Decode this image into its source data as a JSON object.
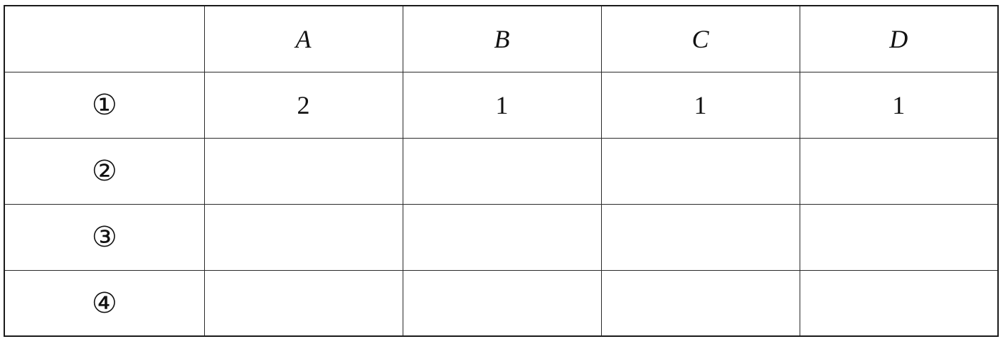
{
  "table": {
    "corner": "",
    "columns": [
      "A",
      "B",
      "C",
      "D"
    ],
    "rows": [
      {
        "label": "①",
        "cells": [
          "2",
          "1",
          "1",
          "1"
        ]
      },
      {
        "label": "②",
        "cells": [
          "",
          "",
          "",
          ""
        ]
      },
      {
        "label": "③",
        "cells": [
          "",
          "",
          "",
          ""
        ]
      },
      {
        "label": "④",
        "cells": [
          "",
          "",
          "",
          ""
        ]
      }
    ]
  }
}
